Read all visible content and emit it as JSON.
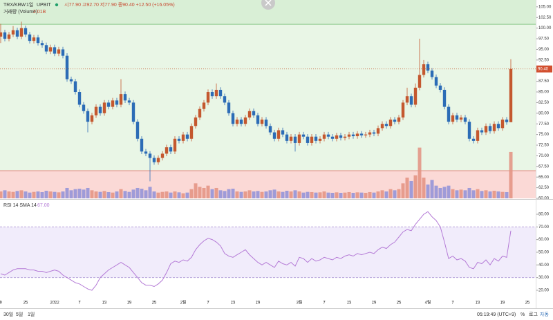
{
  "chart_data": {
    "type": "candlestick",
    "header": {
      "symbol": "TRX/KRW",
      "interval": "1일",
      "exchange": "UPBIT",
      "ohlc": "시77.90 고92.70 저77.90 종90.40 +12.50 (+16.05%)"
    },
    "volume_title": "거래량 (Volume)",
    "volume_value_label": "2.01B",
    "rsi_title": "RSI 14 SMA 14",
    "rsi_value_label": "67.00",
    "last_price_label": "90.40",
    "up_color": "#c4582f",
    "down_color": "#2c6cb6",
    "volume_up_color": "#e39080",
    "volume_down_color": "#8e8fd8",
    "rsi_color": "#b47ad6",
    "levels": [
      100.9,
      66.5
    ],
    "candles": [
      [
        98,
        101,
        96.5,
        99
      ],
      [
        99,
        99.6,
        96.9,
        97.5
      ],
      [
        97.5,
        99.1,
        96.9,
        98.5
      ],
      [
        98.5,
        100.5,
        97.9,
        99.5
      ],
      [
        99.5,
        100.1,
        97.4,
        98
      ],
      [
        98,
        101.5,
        97.4,
        100
      ],
      [
        100,
        100.6,
        97.9,
        98.5
      ],
      [
        98.5,
        99.1,
        96.4,
        97
      ],
      [
        97,
        98.4,
        96.4,
        97.8
      ],
      [
        97.8,
        98.4,
        95.9,
        96.5
      ],
      [
        96.5,
        97.1,
        95.4,
        96
      ],
      [
        96,
        96.6,
        93.9,
        94.5
      ],
      [
        94.5,
        96.1,
        93.9,
        95.5
      ],
      [
        95.5,
        96.1,
        93.4,
        94
      ],
      [
        94,
        95.6,
        93.4,
        95
      ],
      [
        95,
        95.6,
        92.9,
        93.5
      ],
      [
        93.5,
        94.1,
        87.4,
        88
      ],
      [
        88,
        88.6,
        86.9,
        87.5
      ],
      [
        87.5,
        88.1,
        84.4,
        85
      ],
      [
        85,
        85.6,
        81.4,
        82
      ],
      [
        82,
        82.6,
        79.9,
        80.5
      ],
      [
        80.5,
        81.1,
        75.5,
        78
      ],
      [
        78,
        80.1,
        77.4,
        79.5
      ],
      [
        79.5,
        82.1,
        78.9,
        81.5
      ],
      [
        81.5,
        82.1,
        79.4,
        80
      ],
      [
        80,
        83.1,
        79.4,
        82.5
      ],
      [
        82.5,
        83.1,
        80.9,
        81.5
      ],
      [
        81.5,
        83.6,
        80.9,
        83
      ],
      [
        83,
        83.6,
        81.4,
        82
      ],
      [
        82,
        88,
        81.4,
        84.5
      ],
      [
        84.5,
        85.1,
        82.4,
        83
      ],
      [
        83,
        83.6,
        81.9,
        82.5
      ],
      [
        82.5,
        83.1,
        77.4,
        78
      ],
      [
        78,
        78.6,
        73.4,
        74
      ],
      [
        74,
        74.6,
        70.4,
        71
      ],
      [
        71,
        71.6,
        69.9,
        70.5
      ],
      [
        70.5,
        71.1,
        64,
        69.5
      ],
      [
        69.5,
        70.1,
        67.9,
        68.5
      ],
      [
        68.5,
        70.1,
        67.9,
        69.5
      ],
      [
        69.5,
        71.1,
        68.9,
        70.5
      ],
      [
        70.5,
        72.6,
        69.9,
        72
      ],
      [
        72,
        72.6,
        70.4,
        71
      ],
      [
        71,
        74.6,
        70.4,
        74
      ],
      [
        74,
        74.6,
        72.9,
        73.5
      ],
      [
        73.5,
        75.6,
        72.9,
        75
      ],
      [
        75,
        75.6,
        73.4,
        74
      ],
      [
        74,
        77.6,
        73.4,
        77
      ],
      [
        77,
        79.6,
        76.4,
        79
      ],
      [
        79,
        81.6,
        78.4,
        81
      ],
      [
        81,
        83.1,
        80.4,
        82.5
      ],
      [
        82.5,
        85.6,
        81.9,
        85
      ],
      [
        85,
        85.6,
        83.4,
        84
      ],
      [
        84,
        87,
        83.4,
        85.5
      ],
      [
        85.5,
        86.1,
        83.4,
        84
      ],
      [
        84,
        84.6,
        81.9,
        82.5
      ],
      [
        82.5,
        83.1,
        79.4,
        80
      ],
      [
        80,
        80.6,
        76.9,
        77.5
      ],
      [
        77.5,
        79.1,
        76.9,
        78.5
      ],
      [
        78.5,
        79.1,
        76.9,
        77.5
      ],
      [
        77.5,
        79.6,
        76.9,
        79
      ],
      [
        79,
        81.1,
        78.4,
        80.5
      ],
      [
        80.5,
        81.1,
        78.9,
        79.5
      ],
      [
        79.5,
        80.1,
        76.9,
        77.5
      ],
      [
        77.5,
        79.1,
        76.9,
        78.5
      ],
      [
        78.5,
        79.1,
        76.4,
        77
      ],
      [
        77,
        77.6,
        74.9,
        75.5
      ],
      [
        75.5,
        76.1,
        73.4,
        74
      ],
      [
        74,
        76.6,
        73.4,
        76
      ],
      [
        76,
        76.6,
        74.4,
        75
      ],
      [
        75,
        75.6,
        72.9,
        73.5
      ],
      [
        73.5,
        75.1,
        72.9,
        74.5
      ],
      [
        74.5,
        75.1,
        71,
        73
      ],
      [
        73,
        75.6,
        72.4,
        75
      ],
      [
        75,
        75.6,
        73.9,
        74.5
      ],
      [
        74.5,
        75.1,
        72.4,
        73
      ],
      [
        73,
        75.1,
        72.4,
        74.5
      ],
      [
        74.5,
        75.1,
        72.9,
        73.5
      ],
      [
        73.5,
        74.6,
        72.9,
        74
      ],
      [
        74,
        75.6,
        73.4,
        75
      ],
      [
        75,
        75.6,
        73.9,
        74.5
      ],
      [
        74.5,
        75.1,
        73.4,
        74
      ],
      [
        74,
        75.4,
        73.4,
        74.8
      ],
      [
        74.8,
        75.4,
        73.6,
        74.2
      ],
      [
        74.2,
        75.1,
        73.6,
        74.5
      ],
      [
        74.5,
        75.6,
        73.9,
        75
      ],
      [
        75,
        75.6,
        74,
        74.6
      ],
      [
        74.6,
        75.8,
        74,
        75.2
      ],
      [
        75.2,
        75.8,
        74.2,
        74.8
      ],
      [
        74.8,
        75.6,
        74.2,
        75
      ],
      [
        75,
        76.1,
        74.4,
        75.5
      ],
      [
        75.5,
        76.1,
        74.6,
        75.2
      ],
      [
        75.2,
        77.1,
        74.6,
        76.5
      ],
      [
        76.5,
        78.1,
        75.9,
        77.5
      ],
      [
        77.5,
        78.1,
        76.4,
        77
      ],
      [
        77,
        79.1,
        76.4,
        78.5
      ],
      [
        78.5,
        79.1,
        77.4,
        78
      ],
      [
        78,
        79.6,
        77.4,
        79
      ],
      [
        79,
        83.1,
        78.4,
        82.5
      ],
      [
        82.5,
        86,
        81.9,
        84
      ],
      [
        84,
        84.6,
        81.4,
        82
      ],
      [
        82,
        87,
        81.4,
        86
      ],
      [
        86,
        97.5,
        85.4,
        89
      ],
      [
        89,
        92.5,
        88.4,
        91.5
      ],
      [
        91.5,
        92.1,
        89.4,
        90
      ],
      [
        90,
        90.6,
        87.9,
        88.5
      ],
      [
        88.5,
        89.1,
        85.9,
        86.5
      ],
      [
        86.5,
        87.1,
        84.9,
        85.5
      ],
      [
        85.5,
        86.1,
        80.9,
        81.5
      ],
      [
        81.5,
        82.1,
        77.4,
        78
      ],
      [
        78,
        80.1,
        77.4,
        79.5
      ],
      [
        79.5,
        80.1,
        77.9,
        78.5
      ],
      [
        78.5,
        79.6,
        77.9,
        79
      ],
      [
        79,
        79.6,
        77.4,
        78
      ],
      [
        78,
        78.6,
        73.4,
        74
      ],
      [
        74,
        74.6,
        72.9,
        73.5
      ],
      [
        73.5,
        76.6,
        72.9,
        76
      ],
      [
        76,
        76.6,
        74.9,
        75.5
      ],
      [
        75.5,
        77.6,
        74.9,
        77
      ],
      [
        77,
        77.6,
        75.2,
        75.8
      ],
      [
        75.8,
        78.1,
        75.2,
        77.5
      ],
      [
        77.5,
        78.1,
        75.9,
        76.5
      ],
      [
        76.5,
        79.1,
        75.9,
        78.5
      ],
      [
        78.5,
        79.1,
        77.3,
        77.9
      ],
      [
        77.9,
        92.7,
        77.9,
        90.4
      ]
    ],
    "volume": [
      0.3,
      0.35,
      0.3,
      0.28,
      0.32,
      0.35,
      0.3,
      0.25,
      0.28,
      0.3,
      0.27,
      0.33,
      0.3,
      0.28,
      0.26,
      0.3,
      0.45,
      0.35,
      0.4,
      0.42,
      0.38,
      0.45,
      0.35,
      0.3,
      0.28,
      0.32,
      0.27,
      0.25,
      0.3,
      0.4,
      0.32,
      0.28,
      0.38,
      0.45,
      0.42,
      0.35,
      0.5,
      0.3,
      0.25,
      0.28,
      0.3,
      0.25,
      0.3,
      0.26,
      0.22,
      0.25,
      0.4,
      0.65,
      0.5,
      0.45,
      0.55,
      0.4,
      0.45,
      0.35,
      0.32,
      0.4,
      0.42,
      0.3,
      0.28,
      0.3,
      0.35,
      0.3,
      0.32,
      0.28,
      0.3,
      0.35,
      0.38,
      0.3,
      0.28,
      0.33,
      0.3,
      0.35,
      0.3,
      0.25,
      0.28,
      0.27,
      0.25,
      0.26,
      0.3,
      0.25,
      0.24,
      0.26,
      0.24,
      0.25,
      0.27,
      0.24,
      0.26,
      0.25,
      0.24,
      0.27,
      0.25,
      0.3,
      0.35,
      0.3,
      0.4,
      0.35,
      0.4,
      0.65,
      0.9,
      0.75,
      1.0,
      2.2,
      0.9,
      0.6,
      0.8,
      0.55,
      0.45,
      0.5,
      0.55,
      0.4,
      0.35,
      0.38,
      0.35,
      0.45,
      0.35,
      0.4,
      0.32,
      0.35,
      0.3,
      0.33,
      0.3,
      0.28,
      0.27,
      2.01
    ],
    "rsi": [
      33,
      32,
      34,
      36,
      37,
      37,
      37,
      36,
      36,
      35,
      35,
      34,
      35,
      36,
      35,
      32,
      30,
      28,
      26,
      25,
      23,
      21,
      20,
      24,
      30,
      33,
      36,
      38,
      40,
      42,
      40,
      38,
      34,
      30,
      26,
      24,
      24,
      23,
      25,
      28,
      34,
      41,
      43,
      42,
      44,
      43,
      46,
      52,
      56,
      59,
      61,
      60,
      58,
      55,
      49,
      47,
      46,
      48,
      50,
      52,
      48,
      45,
      42,
      40,
      42,
      40,
      38,
      43,
      41,
      40,
      42,
      39,
      46,
      45,
      42,
      45,
      43,
      44,
      46,
      45,
      44,
      46,
      45,
      47,
      48,
      47,
      49,
      48,
      49,
      50,
      49,
      52,
      54,
      53,
      56,
      58,
      62,
      66,
      68,
      67,
      72,
      76,
      80,
      82,
      78,
      75,
      70,
      58,
      45,
      47,
      44,
      45,
      43,
      38,
      37,
      42,
      41,
      44,
      40,
      45,
      43,
      47,
      46,
      67
    ],
    "ylim": [
      60,
      106.6
    ],
    "yticks": [
      {
        "value": 60,
        "label": "60.00"
      },
      {
        "value": 62.5,
        "label": "62.50"
      },
      {
        "value": 65,
        "label": "65.00"
      },
      {
        "value": 67.5,
        "label": "67.50"
      },
      {
        "value": 70,
        "label": "70.00"
      },
      {
        "value": 72.5,
        "label": "72.50"
      },
      {
        "value": 75,
        "label": "75.00"
      },
      {
        "value": 77.5,
        "label": "77.50"
      },
      {
        "value": 80,
        "label": "80.00"
      },
      {
        "value": 82.5,
        "label": "82.50"
      },
      {
        "value": 85,
        "label": "85.00"
      },
      {
        "value": 87.5,
        "label": "87.50"
      },
      {
        "value": 90,
        "label": "90.00"
      },
      {
        "value": 92.5,
        "label": "92.50"
      },
      {
        "value": 95,
        "label": "95.00"
      },
      {
        "value": 97.5,
        "label": "97.50"
      },
      {
        "value": 100,
        "label": "100.00"
      },
      {
        "value": 102.5,
        "label": "102.50"
      },
      {
        "value": 105,
        "label": "105.00"
      }
    ],
    "volume_lim": [
      0,
      8.6
    ],
    "rsi_lim": [
      11.8,
      90.9
    ],
    "rsi_band": [
      30,
      70
    ],
    "rsi_ticks": [
      {
        "value": 20,
        "label": "20.00"
      },
      {
        "value": 30,
        "label": "30.00"
      },
      {
        "value": 40,
        "label": "40.00"
      },
      {
        "value": 50,
        "label": "50.00"
      },
      {
        "value": 60,
        "label": "60.00"
      },
      {
        "value": 70,
        "label": "70.00"
      },
      {
        "value": 80,
        "label": "80.00"
      }
    ],
    "xlim": [
      0,
      123
    ],
    "xticks": [
      {
        "value": 0,
        "label": "9"
      },
      {
        "value": 6,
        "label": "25"
      },
      {
        "value": 13,
        "label": "2022"
      },
      {
        "value": 19,
        "label": "7"
      },
      {
        "value": 25,
        "label": "13"
      },
      {
        "value": 31,
        "label": "19"
      },
      {
        "value": 37,
        "label": "25"
      },
      {
        "value": 44,
        "label": "2월"
      },
      {
        "value": 50,
        "label": "7"
      },
      {
        "value": 56,
        "label": "13"
      },
      {
        "value": 62,
        "label": "19"
      },
      {
        "value": 72,
        "label": "3월"
      },
      {
        "value": 78,
        "label": "7"
      },
      {
        "value": 84,
        "label": "13"
      },
      {
        "value": 90,
        "label": "19"
      },
      {
        "value": 96,
        "label": "25"
      },
      {
        "value": 103,
        "label": "4월"
      },
      {
        "value": 109,
        "label": "7"
      },
      {
        "value": 115,
        "label": "13"
      },
      {
        "value": 121,
        "label": "19"
      },
      {
        "value": 127,
        "label": "25"
      }
    ],
    "footer": {
      "ranges": [
        "30일",
        "5일",
        "1일"
      ],
      "clock": "05:19:49 (UTC+9)",
      "percent": "%",
      "log": "로그",
      "auto": "자동"
    }
  }
}
